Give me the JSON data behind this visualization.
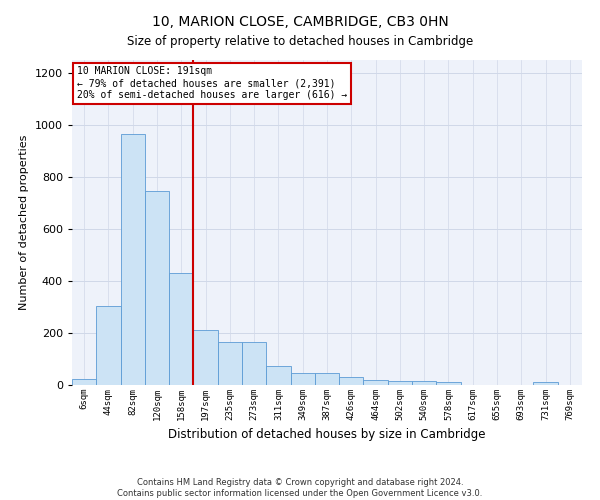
{
  "title": "10, MARION CLOSE, CAMBRIDGE, CB3 0HN",
  "subtitle": "Size of property relative to detached houses in Cambridge",
  "xlabel": "Distribution of detached houses by size in Cambridge",
  "ylabel": "Number of detached properties",
  "property_label": "10 MARION CLOSE: 191sqm",
  "annotation_line1": "← 79% of detached houses are smaller (2,391)",
  "annotation_line2": "20% of semi-detached houses are larger (616) →",
  "bar_edge_color": "#5b9bd5",
  "bar_face_color": "#cce3f5",
  "vline_color": "#cc0000",
  "grid_color": "#d0d8e8",
  "background_color": "#eef2fa",
  "categories": [
    "6sqm",
    "44sqm",
    "82sqm",
    "120sqm",
    "158sqm",
    "197sqm",
    "235sqm",
    "273sqm",
    "311sqm",
    "349sqm",
    "387sqm",
    "426sqm",
    "464sqm",
    "502sqm",
    "540sqm",
    "578sqm",
    "617sqm",
    "655sqm",
    "693sqm",
    "731sqm",
    "769sqm"
  ],
  "values": [
    25,
    305,
    965,
    745,
    430,
    210,
    165,
    165,
    75,
    48,
    48,
    30,
    20,
    15,
    15,
    13,
    0,
    0,
    0,
    12,
    0
  ],
  "vline_x": 4.5,
  "ylim": [
    0,
    1250
  ],
  "yticks": [
    0,
    200,
    400,
    600,
    800,
    1000,
    1200
  ],
  "footnote1": "Contains HM Land Registry data © Crown copyright and database right 2024.",
  "footnote2": "Contains public sector information licensed under the Open Government Licence v3.0."
}
